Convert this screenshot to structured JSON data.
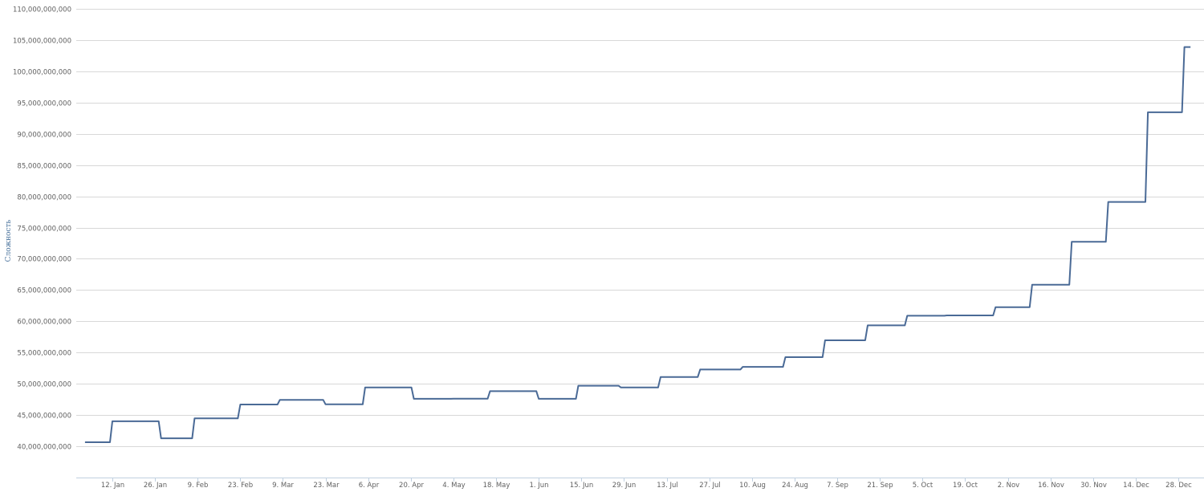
{
  "chart_data": {
    "type": "line",
    "title": "",
    "xlabel": "",
    "ylabel": "Сложность",
    "ylim": [
      35000000000,
      110000000000
    ],
    "yticks": [
      "40,000,000,000",
      "45,000,000,000",
      "50,000,000,000",
      "55,000,000,000",
      "60,000,000,000",
      "65,000,000,000",
      "70,000,000,000",
      "75,000,000,000",
      "80,000,000,000",
      "85,000,000,000",
      "90,000,000,000",
      "95,000,000,000",
      "100,000,000,000",
      "105,000,000,000",
      "110,000,000,000"
    ],
    "ytick_values": [
      40000000000,
      45000000000,
      50000000000,
      55000000000,
      60000000000,
      65000000000,
      70000000000,
      75000000000,
      80000000000,
      85000000000,
      90000000000,
      95000000000,
      100000000000,
      105000000000,
      110000000000
    ],
    "xticks": [
      "12. Jan",
      "26. Jan",
      "9. Feb",
      "23. Feb",
      "9. Mar",
      "23. Mar",
      "6. Apr",
      "20. Apr",
      "4. May",
      "18. May",
      "1. Jun",
      "15. Jun",
      "29. Jun",
      "13. Jul",
      "27. Jul",
      "10. Aug",
      "24. Aug",
      "7. Sep",
      "21. Sep",
      "5. Oct",
      "19. Oct",
      "2. Nov",
      "16. Nov",
      "30. Nov",
      "14. Dec",
      "28. Dec"
    ],
    "grid": true,
    "line_color": "#4a6a96",
    "step": true,
    "series": [
      {
        "points": [
          [
            "3 Jan",
            40640000000
          ],
          [
            "12 Jan",
            44000000000
          ],
          [
            "28 Jan",
            41270000000
          ],
          [
            "8 Feb",
            44460000000
          ],
          [
            "23 Feb",
            46680000000
          ],
          [
            "8 Mar",
            47430000000
          ],
          [
            "23 Mar",
            46710000000
          ],
          [
            "5 Apr",
            49400000000
          ],
          [
            "21 Apr",
            47590000000
          ],
          [
            "4 May",
            47610000000
          ],
          [
            "16 May",
            48810000000
          ],
          [
            "1 Jun",
            47590000000
          ],
          [
            "14 Jun",
            49690000000
          ],
          [
            "28 Jun",
            49400000000
          ],
          [
            "11 Jul",
            51080000000
          ],
          [
            "24 Jul",
            52280000000
          ],
          [
            "7 Aug",
            52700000000
          ],
          [
            "21 Aug",
            54260000000
          ],
          [
            "3 Sep",
            56960000000
          ],
          [
            "17 Sep",
            59340000000
          ],
          [
            "30 Sep",
            60880000000
          ],
          [
            "13 Oct",
            60940000000
          ],
          [
            "29 Oct",
            62250000000
          ],
          [
            "10 Nov",
            65850000000
          ],
          [
            "23 Nov",
            72720000000
          ],
          [
            "5 Dec",
            79100000000
          ],
          [
            "18 Dec",
            93450000000
          ],
          [
            "30 Dec",
            103880000000
          ],
          [
            "1 Jan+",
            103880000000
          ]
        ]
      }
    ]
  }
}
